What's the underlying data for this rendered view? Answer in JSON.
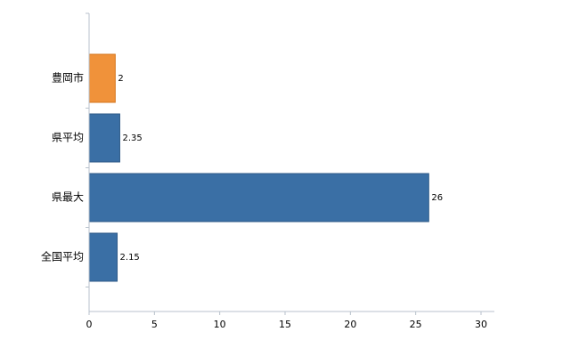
{
  "chart_data": {
    "type": "bar",
    "orientation": "horizontal",
    "title": "",
    "xlabel": "",
    "ylabel": "",
    "categories": [
      "豊岡市",
      "県平均",
      "県最大",
      "全国平均"
    ],
    "values": [
      2,
      2.35,
      26,
      2.15
    ],
    "value_labels": [
      "2",
      "2.35",
      "26",
      "2.15"
    ],
    "xlim": [
      0,
      30
    ],
    "x_ticks": [
      0,
      5,
      10,
      15,
      20,
      25,
      30
    ],
    "grid": false,
    "legend": false,
    "colors": {
      "highlight_bar_fill": "#f0923a",
      "highlight_bar_stroke": "#d4761c",
      "default_bar_fill": "#3a6fa5",
      "default_bar_stroke": "#2e5a87",
      "bar_fills": [
        "#f0923a",
        "#3a6fa5",
        "#3a6fa5",
        "#3a6fa5"
      ],
      "bar_strokes": [
        "#d4761c",
        "#2e5a87",
        "#2e5a87",
        "#2e5a87"
      ],
      "axis_line": "#b9c2cc",
      "text": "#000000"
    }
  }
}
